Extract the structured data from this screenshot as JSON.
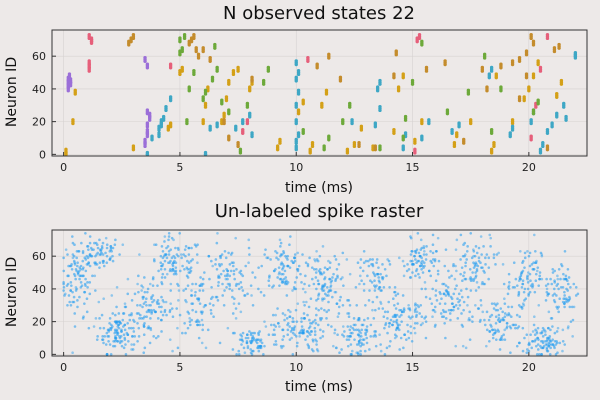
{
  "background": "#ede9e8",
  "chart_data": [
    {
      "type": "scatter",
      "title": "N observed states 22",
      "xlabel": "time (ms)",
      "ylabel": "Neuron ID",
      "xlim": [
        -0.5,
        22.5
      ],
      "ylim": [
        -1,
        76
      ],
      "xticks": [
        0,
        5,
        10,
        15,
        20
      ],
      "yticks": [
        0,
        20,
        40,
        60
      ],
      "grid": true,
      "legend": "none",
      "state_colors": [
        "#9b6fd8",
        "#d4a017",
        "#3ea7c5",
        "#e65f7a",
        "#6da93a",
        "#c48c2c"
      ],
      "series": [
        {
          "values": [
            [
              0.2,
              40
            ],
            [
              0.2,
              42
            ],
            [
              0.2,
              44
            ],
            [
              0.2,
              46
            ],
            [
              0.25,
              48
            ],
            [
              0.3,
              43
            ],
            [
              0.3,
              45
            ],
            [
              3.5,
              6
            ],
            [
              3.5,
              8
            ],
            [
              3.6,
              12
            ],
            [
              3.6,
              14
            ],
            [
              3.6,
              18
            ],
            [
              3.7,
              22
            ],
            [
              3.7,
              24
            ],
            [
              3.6,
              26
            ],
            [
              3.6,
              54
            ],
            [
              3.5,
              58
            ]
          ]
        },
        {
          "values": [
            [
              0.1,
              0
            ],
            [
              0.1,
              2
            ],
            [
              0.4,
              20
            ],
            [
              0.5,
              38
            ],
            [
              3.0,
              4
            ],
            [
              4.5,
              16
            ],
            [
              4.6,
              18
            ],
            [
              5.0,
              50
            ],
            [
              5.1,
              52
            ],
            [
              6.0,
              20
            ],
            [
              6.1,
              30
            ],
            [
              6.2,
              40
            ],
            [
              6.8,
              20
            ],
            [
              6.9,
              24
            ],
            [
              7.0,
              34
            ],
            [
              7.1,
              44
            ],
            [
              7.3,
              50
            ],
            [
              7.5,
              52
            ],
            [
              8.0,
              40
            ],
            [
              8.1,
              44
            ],
            [
              9.2,
              4
            ],
            [
              9.3,
              8
            ],
            [
              10.1,
              26
            ],
            [
              10.3,
              32
            ],
            [
              10.6,
              2
            ],
            [
              10.7,
              6
            ],
            [
              11.1,
              30
            ],
            [
              11.3,
              38
            ],
            [
              12.2,
              2
            ],
            [
              12.5,
              6
            ],
            [
              12.8,
              16
            ],
            [
              13.3,
              4
            ],
            [
              14.2,
              14
            ],
            [
              14.4,
              40
            ],
            [
              14.6,
              48
            ],
            [
              15.1,
              8
            ],
            [
              15.4,
              20
            ],
            [
              16.8,
              6
            ],
            [
              16.9,
              12
            ],
            [
              17.5,
              20
            ],
            [
              18.4,
              2
            ],
            [
              18.5,
              6
            ],
            [
              18.6,
              48
            ],
            [
              19.3,
              20
            ],
            [
              19.8,
              34
            ],
            [
              20.0,
              40
            ],
            [
              20.2,
              48
            ],
            [
              20.4,
              56
            ],
            [
              21.2,
              36
            ],
            [
              21.4,
              44
            ]
          ]
        },
        {
          "values": [
            [
              3.6,
              0
            ],
            [
              3.8,
              10
            ],
            [
              4.1,
              12
            ],
            [
              4.1,
              16
            ],
            [
              4.2,
              18
            ],
            [
              4.2,
              20
            ],
            [
              4.3,
              22
            ],
            [
              4.4,
              28
            ],
            [
              4.6,
              34
            ],
            [
              6.1,
              0
            ],
            [
              6.3,
              16
            ],
            [
              6.6,
              18
            ],
            [
              7.4,
              16
            ],
            [
              7.7,
              20
            ],
            [
              8.0,
              24
            ],
            [
              8.1,
              12
            ],
            [
              10.0,
              4
            ],
            [
              10.0,
              8
            ],
            [
              10.1,
              12
            ],
            [
              10.0,
              20
            ],
            [
              10.0,
              30
            ],
            [
              10.1,
              38
            ],
            [
              10.0,
              46
            ],
            [
              10.1,
              50
            ],
            [
              10.0,
              56
            ],
            [
              12.4,
              20
            ],
            [
              13.4,
              18
            ],
            [
              13.6,
              28
            ],
            [
              13.5,
              40
            ],
            [
              13.6,
              44
            ],
            [
              14.6,
              4
            ],
            [
              14.7,
              12
            ],
            [
              15.4,
              10
            ],
            [
              15.7,
              20
            ],
            [
              16.7,
              14
            ],
            [
              17.0,
              18
            ],
            [
              18.3,
              48
            ],
            [
              18.4,
              52
            ],
            [
              19.2,
              12
            ],
            [
              19.3,
              16
            ],
            [
              20.1,
              20
            ],
            [
              20.2,
              26
            ],
            [
              20.5,
              2
            ],
            [
              20.6,
              6
            ],
            [
              20.8,
              14
            ],
            [
              21.0,
              18
            ],
            [
              21.2,
              24
            ],
            [
              21.5,
              30
            ],
            [
              21.6,
              22
            ],
            [
              22.0,
              60
            ],
            [
              22.0,
              61
            ]
          ]
        },
        {
          "values": [
            [
              1.1,
              52
            ],
            [
              1.1,
              54
            ],
            [
              1.1,
              56
            ],
            [
              1.2,
              69
            ],
            [
              1.2,
              70
            ],
            [
              1.1,
              72
            ],
            [
              4.6,
              54
            ],
            [
              7.7,
              14
            ],
            [
              7.9,
              20
            ],
            [
              10.5,
              58
            ],
            [
              15.1,
              2
            ],
            [
              15.2,
              70
            ],
            [
              15.3,
              72
            ],
            [
              20.1,
              10
            ],
            [
              20.3,
              30
            ],
            [
              20.5,
              52
            ],
            [
              20.8,
              72
            ]
          ]
        },
        {
          "values": [
            [
              5.0,
              62
            ],
            [
              5.1,
              64
            ],
            [
              5.0,
              70
            ],
            [
              5.2,
              72
            ],
            [
              5.3,
              20
            ],
            [
              5.4,
              40
            ],
            [
              5.6,
              50
            ],
            [
              6.0,
              34
            ],
            [
              6.1,
              38
            ],
            [
              6.4,
              46
            ],
            [
              6.6,
              52
            ],
            [
              6.5,
              66
            ],
            [
              6.8,
              32
            ],
            [
              7.1,
              26
            ],
            [
              7.6,
              2
            ],
            [
              7.9,
              30
            ],
            [
              8.6,
              44
            ],
            [
              8.8,
              52
            ],
            [
              10.3,
              14
            ],
            [
              11.2,
              4
            ],
            [
              11.4,
              10
            ],
            [
              12.0,
              20
            ],
            [
              12.3,
              30
            ],
            [
              13.6,
              4
            ],
            [
              14.6,
              10
            ],
            [
              14.7,
              22
            ],
            [
              15.0,
              44
            ],
            [
              15.4,
              68
            ],
            [
              16.5,
              26
            ],
            [
              17.4,
              38
            ],
            [
              18.1,
              60
            ],
            [
              18.4,
              14
            ],
            [
              18.8,
              40
            ],
            [
              20.2,
              26
            ],
            [
              20.4,
              32
            ]
          ]
        },
        {
          "values": [
            [
              2.8,
              68
            ],
            [
              2.9,
              70
            ],
            [
              3.0,
              72
            ],
            [
              5.4,
              68
            ],
            [
              5.5,
              70
            ],
            [
              5.6,
              72
            ],
            [
              5.7,
              64
            ],
            [
              5.8,
              60
            ],
            [
              6.0,
              64
            ],
            [
              6.3,
              58
            ],
            [
              6.9,
              20
            ],
            [
              7.1,
              10
            ],
            [
              7.5,
              6
            ],
            [
              8.1,
              46
            ],
            [
              10.9,
              54
            ],
            [
              11.4,
              60
            ],
            [
              11.9,
              46
            ],
            [
              12.7,
              6
            ],
            [
              13.4,
              4
            ],
            [
              14.2,
              48
            ],
            [
              14.3,
              62
            ],
            [
              15.6,
              52
            ],
            [
              16.4,
              56
            ],
            [
              17.2,
              8
            ],
            [
              18.0,
              52
            ],
            [
              18.2,
              40
            ],
            [
              18.8,
              54
            ],
            [
              19.3,
              56
            ],
            [
              19.6,
              34
            ],
            [
              19.9,
              48
            ],
            [
              19.6,
              58
            ],
            [
              19.9,
              62
            ],
            [
              20.2,
              68
            ],
            [
              20.1,
              72
            ],
            [
              20.8,
              4
            ],
            [
              21.1,
              64
            ],
            [
              21.3,
              66
            ]
          ]
        }
      ]
    },
    {
      "type": "scatter",
      "title": "Un-labeled spike raster",
      "xlabel": "time (ms)",
      "ylabel": "Neuron ID",
      "xlim": [
        -0.5,
        22.5
      ],
      "ylim": [
        -1,
        76
      ],
      "xticks": [
        0,
        5,
        10,
        15,
        20
      ],
      "yticks": [
        0,
        20,
        40,
        60
      ],
      "grid": true,
      "legend": "none",
      "color": "#1e9bf0",
      "clusters": [
        {
          "x": 0.6,
          "y": 45,
          "sx": 0.6,
          "sy": 18,
          "n": 90
        },
        {
          "x": 1.5,
          "y": 62,
          "sx": 0.8,
          "sy": 9,
          "n": 70
        },
        {
          "x": 2.3,
          "y": 14,
          "sx": 0.7,
          "sy": 11,
          "n": 110
        },
        {
          "x": 3.7,
          "y": 26,
          "sx": 0.9,
          "sy": 14,
          "n": 90
        },
        {
          "x": 4.8,
          "y": 55,
          "sx": 1.0,
          "sy": 13,
          "n": 100
        },
        {
          "x": 5.8,
          "y": 30,
          "sx": 0.7,
          "sy": 14,
          "n": 60
        },
        {
          "x": 7.0,
          "y": 46,
          "sx": 0.8,
          "sy": 16,
          "n": 80
        },
        {
          "x": 8.2,
          "y": 8,
          "sx": 0.9,
          "sy": 8,
          "n": 70
        },
        {
          "x": 9.4,
          "y": 52,
          "sx": 0.9,
          "sy": 14,
          "n": 90
        },
        {
          "x": 10.1,
          "y": 15,
          "sx": 0.9,
          "sy": 11,
          "n": 100
        },
        {
          "x": 11.3,
          "y": 42,
          "sx": 0.7,
          "sy": 16,
          "n": 90
        },
        {
          "x": 12.6,
          "y": 12,
          "sx": 0.8,
          "sy": 10,
          "n": 80
        },
        {
          "x": 13.5,
          "y": 45,
          "sx": 0.7,
          "sy": 14,
          "n": 70
        },
        {
          "x": 14.5,
          "y": 20,
          "sx": 0.9,
          "sy": 12,
          "n": 90
        },
        {
          "x": 15.4,
          "y": 56,
          "sx": 0.7,
          "sy": 11,
          "n": 80
        },
        {
          "x": 16.6,
          "y": 30,
          "sx": 0.9,
          "sy": 16,
          "n": 80
        },
        {
          "x": 17.7,
          "y": 55,
          "sx": 0.7,
          "sy": 12,
          "n": 70
        },
        {
          "x": 18.7,
          "y": 20,
          "sx": 0.8,
          "sy": 12,
          "n": 80
        },
        {
          "x": 19.8,
          "y": 45,
          "sx": 0.6,
          "sy": 14,
          "n": 70
        },
        {
          "x": 20.6,
          "y": 8,
          "sx": 0.7,
          "sy": 8,
          "n": 90
        },
        {
          "x": 21.4,
          "y": 40,
          "sx": 0.6,
          "sy": 18,
          "n": 70
        }
      ],
      "background_rate": 220
    }
  ]
}
